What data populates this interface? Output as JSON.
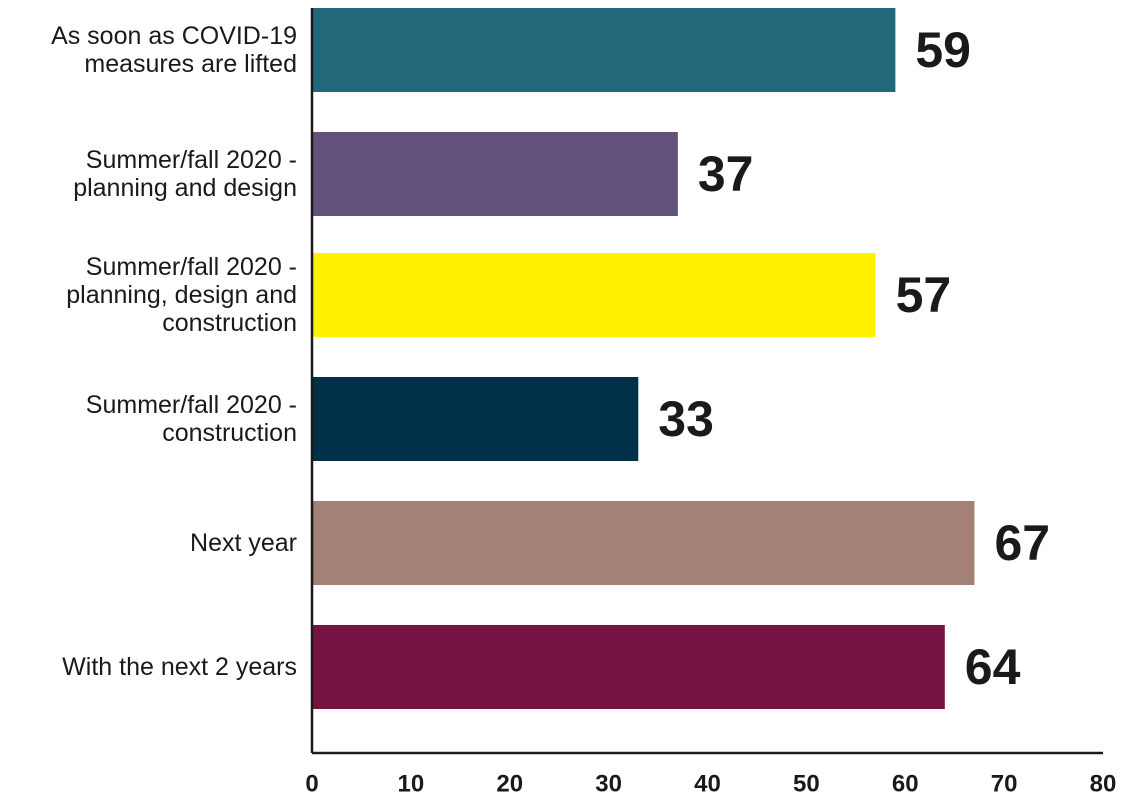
{
  "chart_data": {
    "type": "bar",
    "orientation": "horizontal",
    "categories": [
      "As soon as COVID-19\nmeasures are lifted",
      "Summer/fall 2020 -\nplanning and design",
      "Summer/fall 2020 -\nplanning, design and\nconstruction",
      "Summer/fall 2020 -\nconstruction",
      "Next year",
      "With the next 2 years"
    ],
    "values": [
      59,
      37,
      57,
      33,
      67,
      64
    ],
    "colors": [
      "#22677a",
      "#62517b",
      "#fff100",
      "#003149",
      "#a38275",
      "#751443"
    ],
    "xlim": [
      0,
      80
    ],
    "x_ticks": [
      0,
      10,
      20,
      30,
      40,
      50,
      60,
      70,
      80
    ],
    "title": "",
    "xlabel": "",
    "ylabel": "",
    "grid": false,
    "legend": "none",
    "data_labels": true
  }
}
